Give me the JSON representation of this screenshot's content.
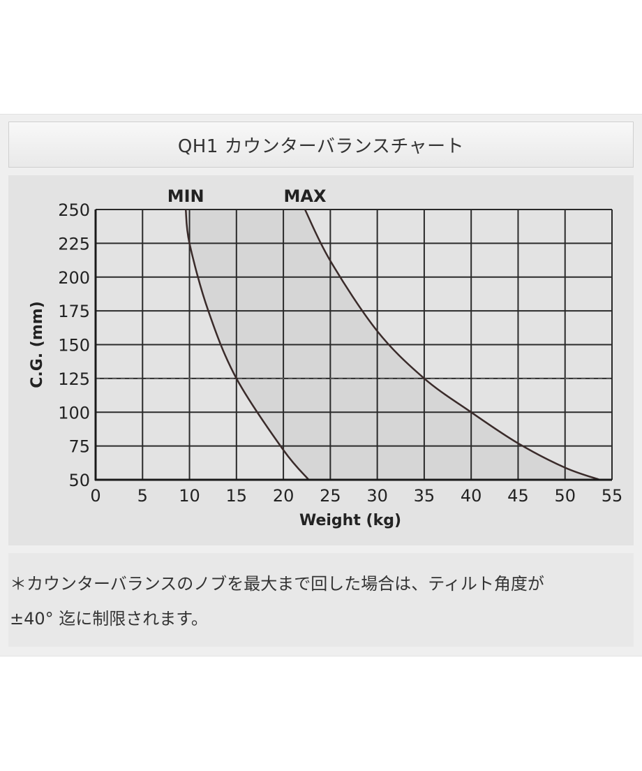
{
  "title": "QH1 カウンターバランスチャート",
  "note": {
    "line1": "＊カウンターバランスのノブを最大まで回した場合は、ティルト角度が",
    "line2": "±40° 迄に制限されます。"
  },
  "chart_data": {
    "type": "area",
    "xlabel": "Weight (kg)",
    "ylabel": "C.G. (mm)",
    "xlim": [
      0,
      55
    ],
    "ylim": [
      50,
      250
    ],
    "xticks": [
      0,
      5,
      10,
      15,
      20,
      25,
      30,
      35,
      40,
      45,
      50,
      55
    ],
    "yticks": [
      50,
      75,
      100,
      125,
      150,
      175,
      200,
      225,
      250
    ],
    "grid": true,
    "reference_line": {
      "y": 125,
      "style": "dashed"
    },
    "series": [
      {
        "name": "MIN",
        "x": [
          9.6,
          10.0,
          12.0,
          15.0,
          20.0,
          22.7
        ],
        "y": [
          250,
          225,
          175,
          125,
          72,
          50
        ]
      },
      {
        "name": "MAX",
        "x": [
          22.3,
          25.0,
          30.0,
          35.0,
          40.0,
          45.0,
          50.0,
          53.7
        ],
        "y": [
          250,
          212,
          160,
          125,
          100,
          77,
          59,
          50
        ]
      }
    ],
    "fill_between": [
      "MIN",
      "MAX"
    ],
    "colors": {
      "curve": "#3a2b2a",
      "fill": "#d6d6d6",
      "grid": "#2a2a2a",
      "background": "#e3e3e3"
    }
  }
}
